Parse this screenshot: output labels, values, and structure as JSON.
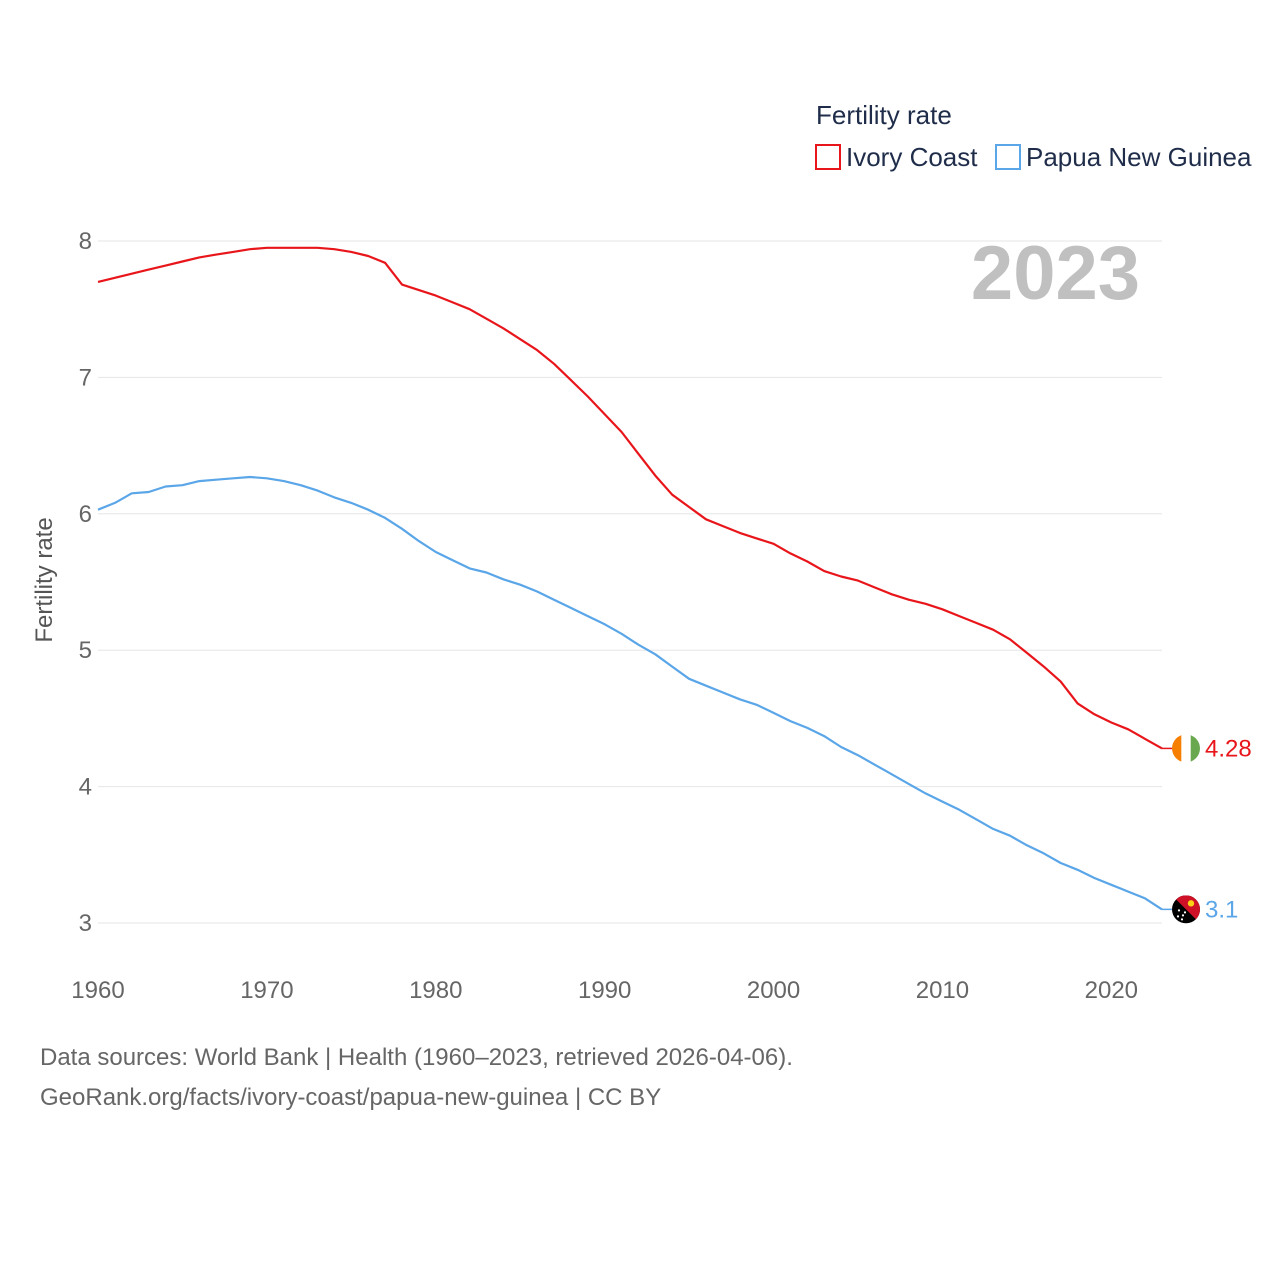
{
  "chart_data": {
    "type": "line",
    "title": "",
    "ylabel": "Fertility rate",
    "xlabel": "",
    "legend_title": "Fertility rate",
    "current_year": "2023",
    "xlim": [
      1960,
      2023
    ],
    "ylim": [
      3,
      8
    ],
    "x_ticks": [
      1960,
      1970,
      1980,
      1990,
      2000,
      2010,
      2020
    ],
    "y_ticks": [
      3,
      4,
      5,
      6,
      7,
      8
    ],
    "grid": true,
    "legend_position": "top-right",
    "series": [
      {
        "name": "Ivory Coast",
        "color": "#e8161b",
        "end_label": "4.28",
        "flag_icon": "ivory-coast-flag-icon",
        "x": [
          1960,
          1961,
          1962,
          1963,
          1964,
          1965,
          1966,
          1967,
          1968,
          1969,
          1970,
          1971,
          1972,
          1973,
          1974,
          1975,
          1976,
          1977,
          1978,
          1979,
          1980,
          1981,
          1982,
          1983,
          1984,
          1985,
          1986,
          1987,
          1988,
          1989,
          1990,
          1991,
          1992,
          1993,
          1994,
          1995,
          1996,
          1997,
          1998,
          1999,
          2000,
          2001,
          2002,
          2003,
          2004,
          2005,
          2006,
          2007,
          2008,
          2009,
          2010,
          2011,
          2012,
          2013,
          2014,
          2015,
          2016,
          2017,
          2018,
          2019,
          2020,
          2021,
          2022,
          2023
        ],
        "values": [
          7.7,
          7.73,
          7.76,
          7.79,
          7.82,
          7.85,
          7.88,
          7.9,
          7.92,
          7.94,
          7.95,
          7.95,
          7.95,
          7.95,
          7.94,
          7.92,
          7.89,
          7.84,
          7.68,
          7.64,
          7.6,
          7.55,
          7.5,
          7.43,
          7.36,
          7.28,
          7.2,
          7.1,
          6.98,
          6.86,
          6.73,
          6.6,
          6.44,
          6.28,
          6.14,
          6.05,
          5.96,
          5.91,
          5.86,
          5.82,
          5.78,
          5.71,
          5.65,
          5.58,
          5.54,
          5.51,
          5.46,
          5.41,
          5.37,
          5.34,
          5.3,
          5.25,
          5.2,
          5.15,
          5.08,
          4.98,
          4.88,
          4.77,
          4.61,
          4.53,
          4.47,
          4.42,
          4.35,
          4.28
        ]
      },
      {
        "name": "Papua New Guinea",
        "color": "#5aa6e8",
        "end_label": "3.1",
        "flag_icon": "papua-new-guinea-flag-icon",
        "x": [
          1960,
          1961,
          1962,
          1963,
          1964,
          1965,
          1966,
          1967,
          1968,
          1969,
          1970,
          1971,
          1972,
          1973,
          1974,
          1975,
          1976,
          1977,
          1978,
          1979,
          1980,
          1981,
          1982,
          1983,
          1984,
          1985,
          1986,
          1987,
          1988,
          1989,
          1990,
          1991,
          1992,
          1993,
          1994,
          1995,
          1996,
          1997,
          1998,
          1999,
          2000,
          2001,
          2002,
          2003,
          2004,
          2005,
          2006,
          2007,
          2008,
          2009,
          2010,
          2011,
          2012,
          2013,
          2014,
          2015,
          2016,
          2017,
          2018,
          2019,
          2020,
          2021,
          2022,
          2023
        ],
        "values": [
          6.03,
          6.08,
          6.15,
          6.16,
          6.2,
          6.21,
          6.24,
          6.25,
          6.26,
          6.27,
          6.26,
          6.24,
          6.21,
          6.17,
          6.12,
          6.08,
          6.03,
          5.97,
          5.89,
          5.8,
          5.72,
          5.66,
          5.6,
          5.57,
          5.52,
          5.48,
          5.43,
          5.37,
          5.31,
          5.25,
          5.19,
          5.12,
          5.04,
          4.97,
          4.88,
          4.79,
          4.74,
          4.69,
          4.64,
          4.6,
          4.54,
          4.48,
          4.43,
          4.37,
          4.29,
          4.23,
          4.16,
          4.09,
          4.02,
          3.95,
          3.89,
          3.83,
          3.76,
          3.69,
          3.64,
          3.57,
          3.51,
          3.44,
          3.39,
          3.33,
          3.28,
          3.23,
          3.18,
          3.1
        ]
      }
    ]
  },
  "footer": {
    "source_line": "Data sources: World Bank | Health (1960–2023, retrieved 2026-04-06).",
    "credit_line": "GeoRank.org/facts/ivory-coast/papua-new-guinea | CC BY"
  }
}
